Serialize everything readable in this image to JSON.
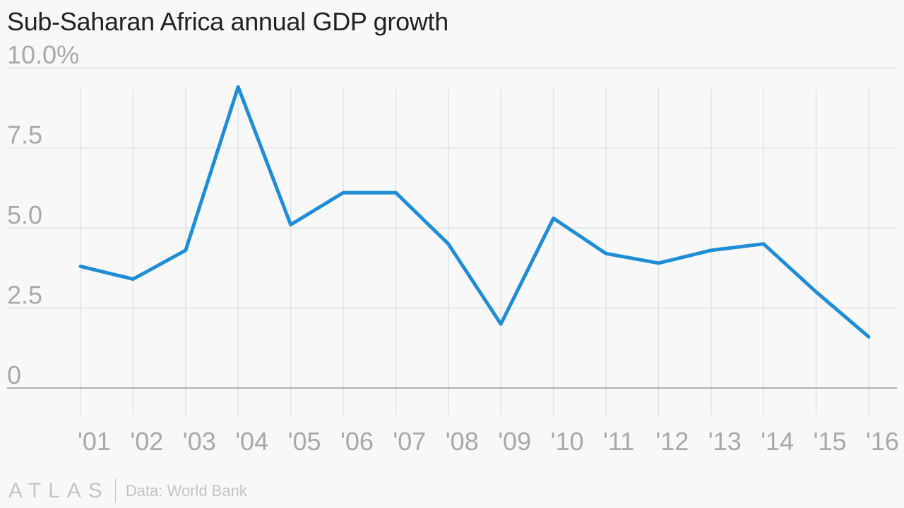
{
  "title": "Sub-Saharan Africa annual GDP growth",
  "footer": {
    "brand": "ATLAS",
    "source": "Data: World Bank"
  },
  "colors": {
    "line": "#1f8dd6",
    "grid": "#e3e3e3",
    "baseline": "#9a9a9a",
    "tick_text": "#a8a8a8",
    "background": "#f8f8f8"
  },
  "chart_data": {
    "type": "line",
    "title": "Sub-Saharan Africa annual GDP growth",
    "xlabel": "",
    "ylabel": "",
    "x": [
      "'01",
      "'02",
      "'03",
      "'04",
      "'05",
      "'06",
      "'07",
      "'08",
      "'09",
      "'10",
      "'11",
      "'12",
      "'13",
      "'14",
      "'15",
      "'16"
    ],
    "series": [
      {
        "values": [
          3.8,
          3.4,
          4.3,
          9.4,
          5.1,
          6.1,
          6.1,
          4.5,
          2.0,
          5.3,
          4.2,
          3.9,
          4.3,
          4.5,
          3.0,
          1.6
        ]
      }
    ],
    "ylim": [
      0,
      10
    ],
    "yticks": [
      0,
      2.5,
      5.0,
      7.5,
      10.0
    ],
    "ytick_labels": [
      "0",
      "2.5",
      "5.0",
      "7.5",
      "10.0%"
    ],
    "grid": true,
    "legend": "none"
  }
}
